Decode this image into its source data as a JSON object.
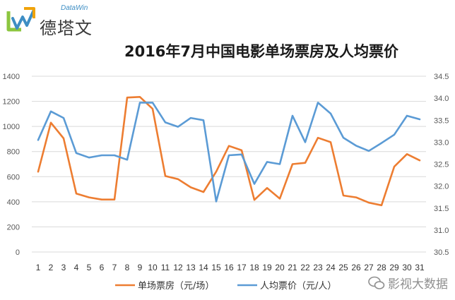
{
  "logo": {
    "en": "DataWin",
    "cn": "德塔文"
  },
  "watermark": "影视大数据",
  "chart_data": {
    "type": "line",
    "title": "2016年7月中国电影单场票房及人均票价",
    "xlabel": "",
    "ylabel": "",
    "categories": [
      "1",
      "2",
      "3",
      "4",
      "5",
      "6",
      "7",
      "8",
      "9",
      "10",
      "11",
      "12",
      "13",
      "14",
      "15",
      "16",
      "17",
      "18",
      "19",
      "20",
      "21",
      "22",
      "23",
      "24",
      "25",
      "26",
      "27",
      "28",
      "29",
      "30",
      "31"
    ],
    "series": [
      {
        "name": "单场票房（元/场）",
        "axis": "left",
        "color": "#ED7D31",
        "values": [
          640,
          1030,
          905,
          465,
          435,
          418,
          418,
          1230,
          1235,
          1140,
          605,
          580,
          515,
          478,
          640,
          845,
          810,
          415,
          510,
          425,
          700,
          710,
          910,
          875,
          450,
          435,
          393,
          372,
          680,
          780,
          730
        ]
      },
      {
        "name": "人均票价（元/人）",
        "axis": "right",
        "color": "#5B9BD5",
        "values": [
          33.05,
          33.7,
          33.55,
          32.75,
          32.65,
          32.7,
          32.7,
          32.6,
          33.9,
          33.9,
          33.45,
          33.35,
          33.55,
          33.5,
          31.65,
          32.7,
          32.72,
          32.05,
          32.55,
          32.5,
          33.6,
          33.0,
          33.9,
          33.65,
          33.1,
          32.92,
          32.8,
          32.98,
          33.17,
          33.6,
          33.52
        ]
      }
    ],
    "left_axis": {
      "ylim": [
        0,
        1400
      ],
      "ticks": [
        "0",
        "200",
        "400",
        "600",
        "800",
        "1000",
        "1200",
        "1400"
      ]
    },
    "right_axis": {
      "ylim": [
        30.5,
        34.5
      ],
      "ticks": [
        "30.5",
        "31.0",
        "31.5",
        "32.0",
        "32.5",
        "33.0",
        "33.5",
        "34.0",
        "34.5"
      ]
    },
    "grid": true,
    "legend_position": "bottom"
  }
}
